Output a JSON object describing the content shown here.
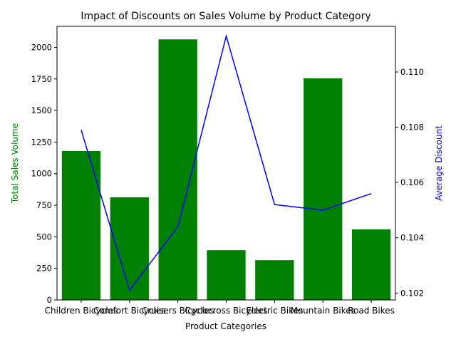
{
  "chart_data": {
    "type": "bar",
    "title": "Impact of Discounts on Sales Volume by Product Category",
    "xlabel": "Product Categories",
    "ylabel": "Total Sales Volume",
    "y2label": "Average Discount",
    "categories": [
      "Children Bicycles",
      "Comfort Bicycles",
      "Cruisers Bicycles",
      "Cyclocross Bicycles",
      "Electric Bikes",
      "Mountain Bikes",
      "Road Bikes"
    ],
    "series": [
      {
        "name": "Total Sales Volume",
        "type": "bar",
        "axis": "left",
        "color": "#008000",
        "values": [
          1179,
          813,
          2063,
          394,
          315,
          1755,
          559
        ]
      },
      {
        "name": "Average Discount",
        "type": "line",
        "axis": "right",
        "color": "#0000ff",
        "values": [
          0.1079,
          0.1021,
          0.1044,
          0.1113,
          0.1052,
          0.105,
          0.1056
        ]
      }
    ],
    "ylim": [
      0,
      2166
    ],
    "yticks": [
      "0",
      "250",
      "500",
      "750",
      "1000",
      "1250",
      "1500",
      "1750",
      "2000"
    ],
    "y2lim": [
      0.10175,
      0.11165
    ],
    "y2ticks": [
      "0.102",
      "0.104",
      "0.106",
      "0.108",
      "0.110"
    ],
    "grid": false,
    "legend": "none"
  }
}
